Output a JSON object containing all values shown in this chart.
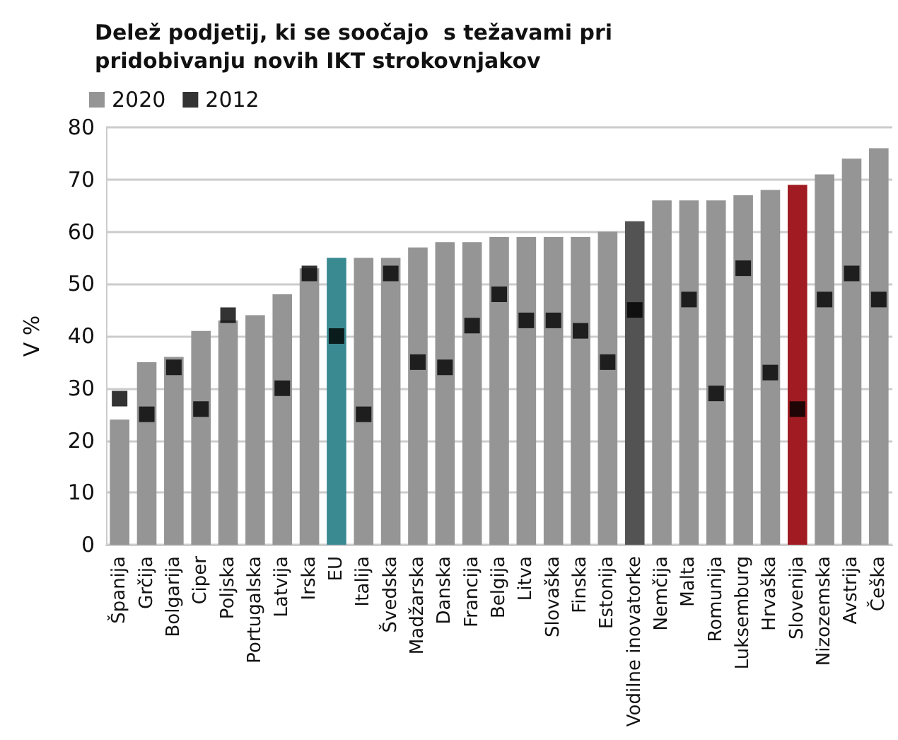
{
  "chart_data": {
    "type": "bar",
    "title": "Delež podjetij, ki se soočajo  s težavami pri pridobivanju novih IKT strokovnjakov",
    "ylabel": "V %",
    "categories": [
      "Španija",
      "Grčija",
      "Bolgarija",
      "Ciper",
      "Poljska",
      "Portugalska",
      "Latvija",
      "Irska",
      "EU",
      "Italija",
      "Švedska",
      "Madžarska",
      "Danska",
      "Francija",
      "Belgija",
      "Litva",
      "Slovaška",
      "Finska",
      "Estonija",
      "Vodilne inovatorke",
      "Nemčija",
      "Malta",
      "Romunija",
      "Luksemburg",
      "Hrvaška",
      "Slovenija",
      "Nizozemska",
      "Avstrija",
      "Češka"
    ],
    "series": [
      {
        "name": "2020",
        "color": "#959595",
        "colors": [
          "#959595",
          "#959595",
          "#959595",
          "#959595",
          "#959595",
          "#959595",
          "#959595",
          "#959595",
          "#3a8a92",
          "#959595",
          "#959595",
          "#959595",
          "#959595",
          "#959595",
          "#959595",
          "#959595",
          "#959595",
          "#959595",
          "#959595",
          "#535353",
          "#959595",
          "#959595",
          "#959595",
          "#959595",
          "#959595",
          "#a11c22",
          "#959595",
          "#959595",
          "#959595"
        ],
        "values": [
          24,
          35,
          36,
          41,
          43,
          44,
          48,
          53,
          55,
          55,
          55,
          57,
          58,
          58,
          59,
          59,
          59,
          59,
          60,
          62,
          66,
          66,
          66,
          67,
          68,
          69,
          71,
          74,
          76
        ]
      },
      {
        "name": "2012",
        "type": "scatter",
        "color": "#000000",
        "marker": "square",
        "values": [
          28,
          25,
          34,
          26,
          44,
          null,
          30,
          52,
          40,
          25,
          52,
          35,
          34,
          42,
          48,
          43,
          43,
          41,
          35,
          45,
          null,
          47,
          29,
          53,
          33,
          26,
          47,
          52,
          47
        ]
      }
    ],
    "ylim": [
      0,
      80
    ],
    "yticks": [
      0,
      10,
      20,
      30,
      40,
      50,
      60,
      70,
      80
    ],
    "grid": "y",
    "legend": "top left"
  }
}
